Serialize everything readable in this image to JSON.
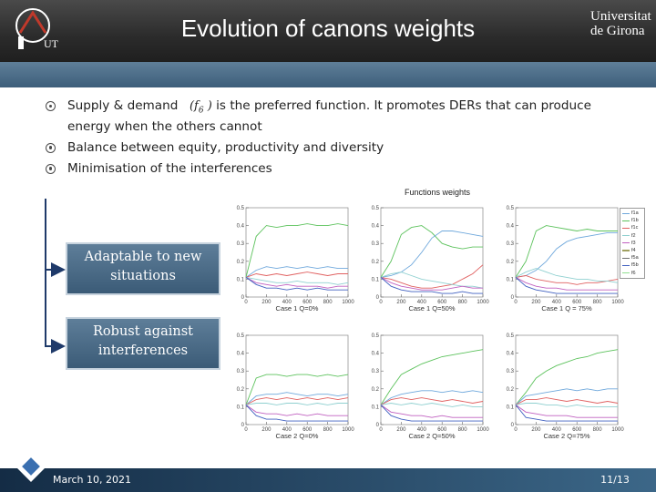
{
  "header": {
    "title": "Evolution of canons weights",
    "left_logo_text": "UT",
    "right_logo_line1": "Universitat",
    "right_logo_line2": "de Girona"
  },
  "bullets": [
    {
      "before": "Supply & demand",
      "formula": "(f",
      "formula_sub": "6",
      "formula_end": ")",
      "after": " is the preferred function. It promotes DERs that can produce energy when the others cannot"
    },
    {
      "text": "Balance between equity, productivity and diversity"
    },
    {
      "text": "Minimisation of the interferences"
    }
  ],
  "boxes": {
    "adaptable": "Adaptable to new situations",
    "robust": "Robust against interferences"
  },
  "footer": {
    "date": "March 10, 2021",
    "page": "11/13"
  },
  "colors": {
    "header_dark": "#2b2b2b",
    "band_blue": "#4a6a86",
    "box_blue": "#4b6b87",
    "footer_blue": "#1f3a57"
  },
  "chart_data": {
    "type": "line",
    "title": "Functions weights",
    "legend": [
      "f1a",
      "f1b",
      "f1c",
      "f2",
      "f3",
      "f4",
      "f5a",
      "f5b",
      "f6"
    ],
    "legend_colors": [
      "#6fa8dc",
      "#5cc25c",
      "#e06060",
      "#8fd0d0",
      "#c060c0",
      "#a0a060",
      "#707070",
      "#4060c0",
      "#90e090"
    ],
    "panels": [
      {
        "caption": "Case 1 Q=0%",
        "ylim": [
          0,
          0.5
        ],
        "xlim": [
          0,
          1000
        ],
        "yticks": [
          "0",
          "0.1",
          "0.2",
          "0.3",
          "0.4",
          "0.5"
        ],
        "xticks": [
          "0",
          "200",
          "400",
          "600",
          "800",
          "1000"
        ],
        "x": [
          0,
          100,
          200,
          300,
          400,
          500,
          600,
          700,
          800,
          900,
          1000
        ],
        "series": [
          {
            "values": [
              0.11,
              0.34,
              0.4,
              0.39,
              0.4,
              0.4,
              0.41,
              0.4,
              0.4,
              0.41,
              0.4
            ]
          },
          {
            "values": [
              0.11,
              0.15,
              0.17,
              0.16,
              0.17,
              0.16,
              0.17,
              0.16,
              0.17,
              0.16,
              0.16
            ]
          },
          {
            "values": [
              0.11,
              0.13,
              0.12,
              0.13,
              0.12,
              0.13,
              0.14,
              0.13,
              0.12,
              0.13,
              0.13
            ]
          },
          {
            "values": [
              0.11,
              0.1,
              0.09,
              0.08,
              0.08,
              0.09,
              0.08,
              0.08,
              0.08,
              0.07,
              0.08
            ]
          },
          {
            "values": [
              0.11,
              0.08,
              0.07,
              0.06,
              0.07,
              0.06,
              0.06,
              0.06,
              0.05,
              0.06,
              0.06
            ]
          },
          {
            "values": [
              0.11,
              0.07,
              0.05,
              0.05,
              0.04,
              0.05,
              0.04,
              0.05,
              0.04,
              0.04,
              0.04
            ]
          }
        ]
      },
      {
        "caption": "Case 1 Q=50%",
        "ylim": [
          0,
          0.5
        ],
        "xlim": [
          0,
          1000
        ],
        "yticks": [
          "0",
          "0.1",
          "0.2",
          "0.3",
          "0.4",
          "0.5"
        ],
        "xticks": [
          "0",
          "200",
          "400",
          "600",
          "800",
          "1000"
        ],
        "x": [
          0,
          100,
          200,
          300,
          400,
          500,
          600,
          700,
          800,
          900,
          1000
        ],
        "series": [
          {
            "values": [
              0.11,
              0.2,
              0.35,
              0.39,
              0.4,
              0.36,
              0.3,
              0.28,
              0.27,
              0.28,
              0.28
            ]
          },
          {
            "values": [
              0.11,
              0.12,
              0.14,
              0.18,
              0.25,
              0.33,
              0.37,
              0.37,
              0.36,
              0.35,
              0.34
            ]
          },
          {
            "values": [
              0.11,
              0.1,
              0.08,
              0.06,
              0.05,
              0.05,
              0.06,
              0.07,
              0.1,
              0.13,
              0.18
            ]
          },
          {
            "values": [
              0.11,
              0.13,
              0.14,
              0.12,
              0.1,
              0.09,
              0.08,
              0.07,
              0.06,
              0.06,
              0.05
            ]
          },
          {
            "values": [
              0.11,
              0.08,
              0.06,
              0.05,
              0.04,
              0.04,
              0.04,
              0.05,
              0.06,
              0.05,
              0.05
            ]
          },
          {
            "values": [
              0.11,
              0.06,
              0.04,
              0.03,
              0.03,
              0.03,
              0.02,
              0.02,
              0.03,
              0.02,
              0.02
            ]
          }
        ]
      },
      {
        "caption": "Case 1 Q = 75%",
        "ylim": [
          0,
          0.5
        ],
        "xlim": [
          0,
          1000
        ],
        "yticks": [
          "0",
          "0.1",
          "0.2",
          "0.3",
          "0.4",
          "0.5"
        ],
        "xticks": [
          "0",
          "200",
          "400",
          "600",
          "800",
          "1000"
        ],
        "x": [
          0,
          100,
          200,
          300,
          400,
          500,
          600,
          700,
          800,
          900,
          1000
        ],
        "series": [
          {
            "values": [
              0.11,
              0.2,
              0.37,
              0.4,
              0.39,
              0.38,
              0.37,
              0.38,
              0.37,
              0.37,
              0.37
            ]
          },
          {
            "values": [
              0.11,
              0.12,
              0.15,
              0.2,
              0.27,
              0.31,
              0.33,
              0.34,
              0.35,
              0.36,
              0.36
            ]
          },
          {
            "values": [
              0.11,
              0.12,
              0.1,
              0.09,
              0.08,
              0.08,
              0.07,
              0.08,
              0.08,
              0.09,
              0.1
            ]
          },
          {
            "values": [
              0.11,
              0.14,
              0.16,
              0.14,
              0.12,
              0.11,
              0.1,
              0.1,
              0.09,
              0.09,
              0.08
            ]
          },
          {
            "values": [
              0.11,
              0.08,
              0.06,
              0.05,
              0.05,
              0.04,
              0.04,
              0.04,
              0.04,
              0.04,
              0.04
            ]
          },
          {
            "values": [
              0.11,
              0.06,
              0.04,
              0.03,
              0.02,
              0.02,
              0.02,
              0.02,
              0.02,
              0.02,
              0.02
            ]
          }
        ]
      },
      {
        "caption": "Case 2 Q=0%",
        "ylim": [
          0,
          0.5
        ],
        "xlim": [
          0,
          1000
        ],
        "yticks": [
          "0",
          "0.1",
          "0.2",
          "0.3",
          "0.4",
          "0.5"
        ],
        "xticks": [
          "0",
          "200",
          "400",
          "600",
          "800",
          "1000"
        ],
        "x": [
          0,
          100,
          200,
          300,
          400,
          500,
          600,
          700,
          800,
          900,
          1000
        ],
        "series": [
          {
            "values": [
              0.11,
              0.26,
              0.28,
              0.28,
              0.27,
              0.28,
              0.28,
              0.27,
              0.28,
              0.27,
              0.28
            ]
          },
          {
            "values": [
              0.11,
              0.16,
              0.17,
              0.17,
              0.18,
              0.17,
              0.16,
              0.17,
              0.17,
              0.16,
              0.17
            ]
          },
          {
            "values": [
              0.11,
              0.14,
              0.15,
              0.14,
              0.15,
              0.14,
              0.15,
              0.14,
              0.15,
              0.14,
              0.15
            ]
          },
          {
            "values": [
              0.11,
              0.12,
              0.12,
              0.11,
              0.12,
              0.12,
              0.11,
              0.12,
              0.11,
              0.12,
              0.12
            ]
          },
          {
            "values": [
              0.11,
              0.07,
              0.06,
              0.06,
              0.05,
              0.06,
              0.05,
              0.06,
              0.05,
              0.05,
              0.05
            ]
          },
          {
            "values": [
              0.11,
              0.05,
              0.03,
              0.03,
              0.02,
              0.02,
              0.02,
              0.02,
              0.02,
              0.02,
              0.02
            ]
          }
        ]
      },
      {
        "caption": "Case 2 Q=50%",
        "ylim": [
          0,
          0.5
        ],
        "xlim": [
          0,
          1000
        ],
        "yticks": [
          "0",
          "0.1",
          "0.2",
          "0.3",
          "0.4",
          "0.5"
        ],
        "xticks": [
          "0",
          "200",
          "400",
          "600",
          "800",
          "1000"
        ],
        "x": [
          0,
          100,
          200,
          300,
          400,
          500,
          600,
          700,
          800,
          900,
          1000
        ],
        "series": [
          {
            "values": [
              0.11,
              0.2,
              0.28,
              0.31,
              0.34,
              0.36,
              0.38,
              0.39,
              0.4,
              0.41,
              0.42
            ]
          },
          {
            "values": [
              0.11,
              0.15,
              0.17,
              0.18,
              0.19,
              0.19,
              0.18,
              0.19,
              0.18,
              0.19,
              0.18
            ]
          },
          {
            "values": [
              0.11,
              0.14,
              0.15,
              0.14,
              0.15,
              0.14,
              0.13,
              0.14,
              0.13,
              0.12,
              0.13
            ]
          },
          {
            "values": [
              0.11,
              0.12,
              0.11,
              0.12,
              0.11,
              0.12,
              0.11,
              0.1,
              0.11,
              0.1,
              0.1
            ]
          },
          {
            "values": [
              0.11,
              0.07,
              0.06,
              0.05,
              0.05,
              0.04,
              0.05,
              0.04,
              0.04,
              0.04,
              0.04
            ]
          },
          {
            "values": [
              0.11,
              0.05,
              0.03,
              0.02,
              0.02,
              0.02,
              0.02,
              0.02,
              0.02,
              0.02,
              0.02
            ]
          }
        ]
      },
      {
        "caption": "Case 2 Q=75%",
        "ylim": [
          0,
          0.5
        ],
        "xlim": [
          0,
          1000
        ],
        "yticks": [
          "0",
          "0.1",
          "0.2",
          "0.3",
          "0.4",
          "0.5"
        ],
        "xticks": [
          "0",
          "200",
          "400",
          "600",
          "800",
          "1000"
        ],
        "x": [
          0,
          100,
          200,
          300,
          400,
          500,
          600,
          700,
          800,
          900,
          1000
        ],
        "series": [
          {
            "values": [
              0.11,
              0.18,
              0.26,
              0.3,
              0.33,
              0.35,
              0.37,
              0.38,
              0.4,
              0.41,
              0.42
            ]
          },
          {
            "values": [
              0.11,
              0.16,
              0.17,
              0.18,
              0.19,
              0.2,
              0.19,
              0.2,
              0.19,
              0.2,
              0.2
            ]
          },
          {
            "values": [
              0.11,
              0.14,
              0.14,
              0.15,
              0.14,
              0.13,
              0.14,
              0.13,
              0.12,
              0.13,
              0.12
            ]
          },
          {
            "values": [
              0.11,
              0.12,
              0.12,
              0.11,
              0.11,
              0.1,
              0.11,
              0.1,
              0.1,
              0.1,
              0.1
            ]
          },
          {
            "values": [
              0.11,
              0.07,
              0.06,
              0.05,
              0.05,
              0.05,
              0.04,
              0.04,
              0.04,
              0.04,
              0.04
            ]
          },
          {
            "values": [
              0.11,
              0.04,
              0.03,
              0.02,
              0.02,
              0.02,
              0.02,
              0.02,
              0.02,
              0.02,
              0.02
            ]
          }
        ]
      }
    ]
  }
}
